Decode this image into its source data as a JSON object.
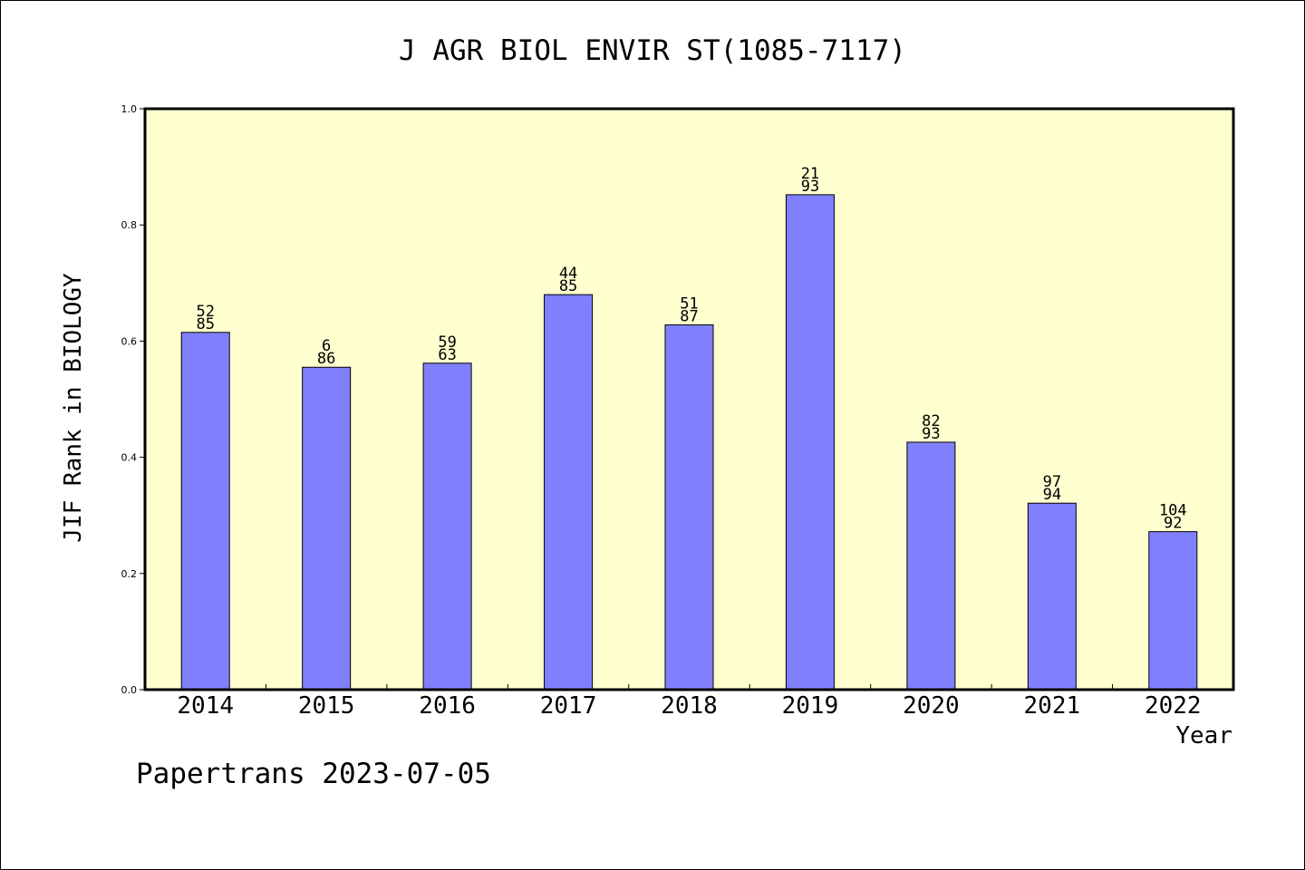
{
  "chart_data": {
    "type": "bar",
    "title": "J AGR BIOL ENVIR ST(1085-7117)",
    "xlabel": "Year",
    "ylabel": "JIF Rank in BIOLOGY",
    "ylim": [
      0.0,
      1.0
    ],
    "yticks": [
      "0.0",
      "0.2",
      "0.4",
      "0.6",
      "0.8",
      "1.0"
    ],
    "categories": [
      "2014",
      "2015",
      "2016",
      "2017",
      "2018",
      "2019",
      "2020",
      "2021",
      "2022"
    ],
    "values": [
      0.615,
      0.555,
      0.562,
      0.68,
      0.628,
      0.852,
      0.426,
      0.321,
      0.272
    ],
    "labels": [
      [
        "52",
        "85"
      ],
      [
        "6",
        "86"
      ],
      [
        "59",
        "63"
      ],
      [
        "44",
        "85"
      ],
      [
        "51",
        "87"
      ],
      [
        "21",
        "93"
      ],
      [
        "82",
        "93"
      ],
      [
        "97",
        "94"
      ],
      [
        "104",
        "92"
      ]
    ],
    "bar_color": "#8080ff",
    "plot_background": "#ffffd0",
    "grid": false
  },
  "footer": {
    "text": "Papertrans 2023-07-05"
  }
}
